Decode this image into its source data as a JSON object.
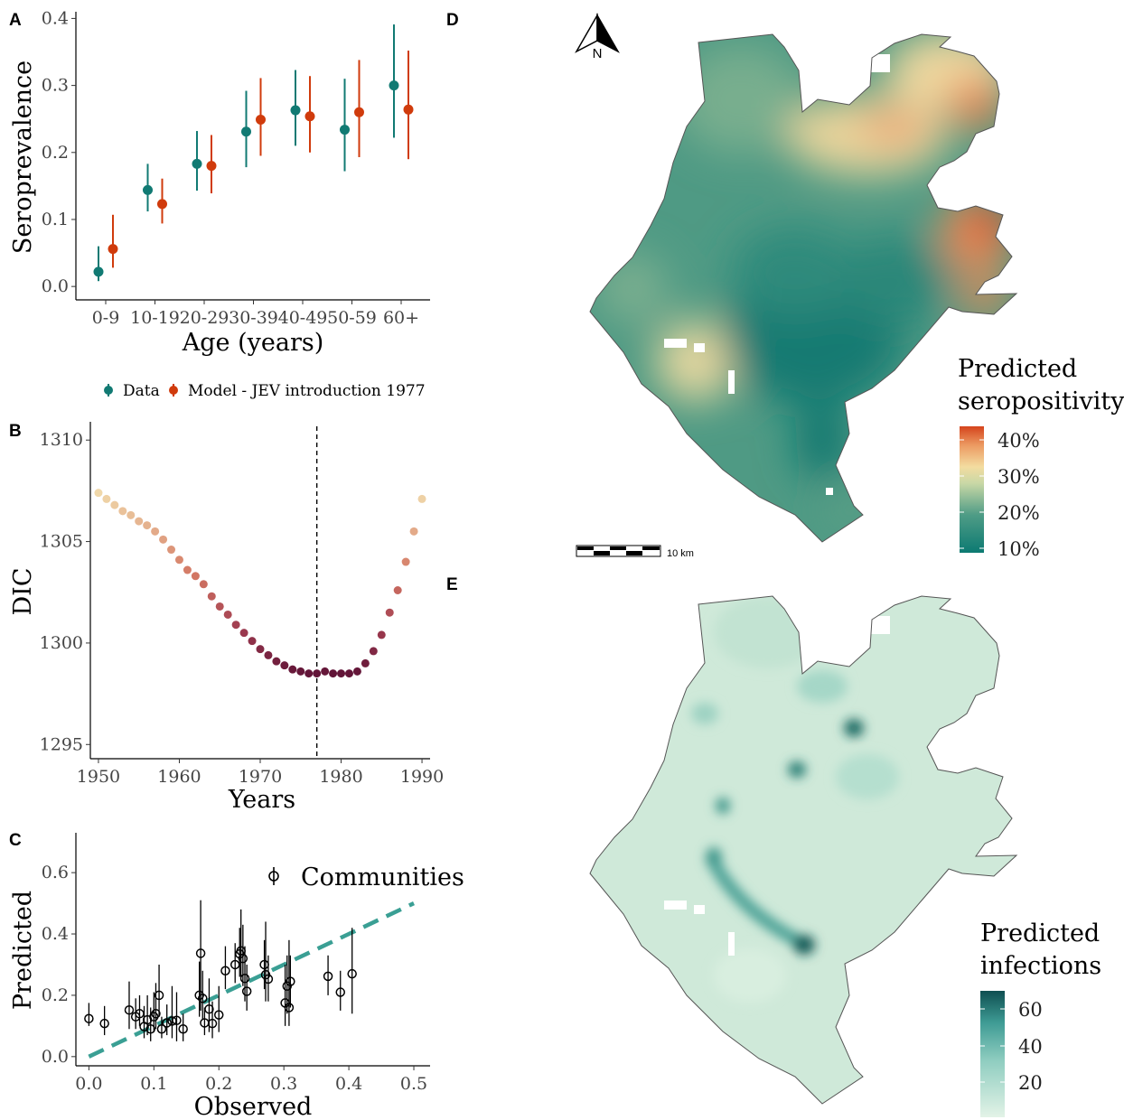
{
  "panels": {
    "A": "A",
    "B": "B",
    "C": "C",
    "D": "D",
    "E": "E"
  },
  "chart_data": [
    {
      "type": "scatter",
      "panel": "A",
      "categories": [
        "0-9",
        "10-19",
        "20-29",
        "30-39",
        "40-49",
        "50-59",
        "60+"
      ],
      "series": [
        {
          "name": "Data",
          "color": "#117a73",
          "values": [
            0.022,
            0.144,
            0.183,
            0.231,
            0.263,
            0.234,
            0.3
          ],
          "lower": [
            0.008,
            0.112,
            0.143,
            0.178,
            0.21,
            0.172,
            0.222
          ],
          "upper": [
            0.06,
            0.183,
            0.232,
            0.292,
            0.323,
            0.31,
            0.391
          ]
        },
        {
          "name": "Model - JEV introduction 1977",
          "color": "#d03b0c",
          "values": [
            0.056,
            0.123,
            0.18,
            0.249,
            0.254,
            0.26,
            0.264
          ],
          "lower": [
            0.028,
            0.094,
            0.139,
            0.195,
            0.2,
            0.193,
            0.19
          ],
          "upper": [
            0.107,
            0.161,
            0.226,
            0.311,
            0.314,
            0.338,
            0.352
          ]
        }
      ],
      "xlabel": "Age (years)",
      "ylabel": "Seroprevalence",
      "ylim": [
        -0.02,
        0.41
      ],
      "yticks": [
        "0.0",
        "0.1",
        "0.2",
        "0.3",
        "0.4"
      ],
      "legend_position": "bottom"
    },
    {
      "type": "scatter",
      "panel": "B",
      "x": [
        1950,
        1951,
        1952,
        1953,
        1954,
        1955,
        1956,
        1957,
        1958,
        1959,
        1960,
        1961,
        1962,
        1963,
        1964,
        1965,
        1966,
        1967,
        1968,
        1969,
        1970,
        1971,
        1972,
        1973,
        1974,
        1975,
        1976,
        1977,
        1978,
        1979,
        1980,
        1981,
        1982,
        1983,
        1984,
        1985,
        1986,
        1987,
        1988,
        1989,
        1990
      ],
      "y": [
        1307.4,
        1307.1,
        1306.8,
        1306.5,
        1306.3,
        1306.0,
        1305.8,
        1305.5,
        1305.1,
        1304.6,
        1304.1,
        1303.6,
        1303.3,
        1302.9,
        1302.3,
        1301.8,
        1301.4,
        1300.9,
        1300.5,
        1300.1,
        1299.7,
        1299.4,
        1299.1,
        1298.9,
        1298.7,
        1298.6,
        1298.5,
        1298.5,
        1298.6,
        1298.5,
        1298.5,
        1298.5,
        1298.6,
        1299.0,
        1299.6,
        1300.4,
        1301.5,
        1302.6,
        1304.0,
        1305.5,
        1307.1
      ],
      "xlabel": "Years",
      "ylabel": "DIC",
      "xlim": [
        1949,
        1991
      ],
      "ylim": [
        1294.3,
        1310.9
      ],
      "xticks": [
        1950,
        1960,
        1970,
        1980,
        1990
      ],
      "yticks": [
        1295,
        1300,
        1305,
        1310
      ],
      "vline": 1977
    },
    {
      "type": "scatter",
      "panel": "C",
      "series": [
        {
          "name": "Communities",
          "points": [
            [
              0.0,
              0.124,
              0.1,
              0.175
            ],
            [
              0.024,
              0.108,
              0.07,
              0.165
            ],
            [
              0.062,
              0.152,
              0.09,
              0.245
            ],
            [
              0.072,
              0.13,
              0.09,
              0.19
            ],
            [
              0.078,
              0.14,
              0.1,
              0.2
            ],
            [
              0.085,
              0.098,
              0.06,
              0.165
            ],
            [
              0.09,
              0.12,
              0.07,
              0.2
            ],
            [
              0.095,
              0.09,
              0.05,
              0.16
            ],
            [
              0.1,
              0.13,
              0.08,
              0.21
            ],
            [
              0.103,
              0.14,
              0.09,
              0.24
            ],
            [
              0.108,
              0.2,
              0.13,
              0.3
            ],
            [
              0.112,
              0.09,
              0.06,
              0.13
            ],
            [
              0.12,
              0.11,
              0.07,
              0.17
            ],
            [
              0.128,
              0.116,
              0.06,
              0.23
            ],
            [
              0.135,
              0.118,
              0.05,
              0.21
            ],
            [
              0.145,
              0.09,
              0.05,
              0.14
            ],
            [
              0.17,
              0.2,
              0.13,
              0.31
            ],
            [
              0.172,
              0.337,
              0.15,
              0.51
            ],
            [
              0.175,
              0.19,
              0.12,
              0.28
            ],
            [
              0.178,
              0.11,
              0.07,
              0.16
            ],
            [
              0.185,
              0.155,
              0.08,
              0.255
            ],
            [
              0.19,
              0.108,
              0.06,
              0.18
            ],
            [
              0.2,
              0.136,
              0.08,
              0.23
            ],
            [
              0.21,
              0.28,
              0.22,
              0.36
            ],
            [
              0.225,
              0.3,
              0.24,
              0.37
            ],
            [
              0.232,
              0.335,
              0.26,
              0.42
            ],
            [
              0.234,
              0.345,
              0.26,
              0.48
            ],
            [
              0.237,
              0.32,
              0.23,
              0.43
            ],
            [
              0.24,
              0.255,
              0.18,
              0.36
            ],
            [
              0.243,
              0.213,
              0.15,
              0.3
            ],
            [
              0.27,
              0.3,
              0.22,
              0.38
            ],
            [
              0.272,
              0.267,
              0.18,
              0.44
            ],
            [
              0.276,
              0.253,
              0.18,
              0.33
            ],
            [
              0.302,
              0.175,
              0.1,
              0.3
            ],
            [
              0.305,
              0.23,
              0.14,
              0.33
            ],
            [
              0.308,
              0.16,
              0.1,
              0.38
            ],
            [
              0.31,
              0.245,
              0.16,
              0.33
            ],
            [
              0.368,
              0.262,
              0.2,
              0.33
            ],
            [
              0.387,
              0.21,
              0.15,
              0.28
            ],
            [
              0.405,
              0.27,
              0.14,
              0.42
            ]
          ]
        }
      ],
      "xlabel": "Observed",
      "ylabel": "Predicted",
      "xlim": [
        -0.02,
        0.525
      ],
      "ylim": [
        -0.03,
        0.73
      ],
      "xticks": [
        "0.0",
        "0.1",
        "0.2",
        "0.3",
        "0.4",
        "0.5"
      ],
      "yticks": [
        "0.0",
        "0.2",
        "0.4",
        "0.6"
      ],
      "reference_line": {
        "slope": 1,
        "intercept": 0,
        "color": "#3a9f94",
        "style": "dashed"
      },
      "legend_position": "top-right"
    },
    {
      "type": "heatmap",
      "panel": "D",
      "legend_title": [
        "Predicted",
        "seropositivity"
      ],
      "colorbar_ticks": [
        "40%",
        "30%",
        "20%",
        "10%"
      ],
      "colors": [
        "#0c7a72",
        "#f3dca0",
        "#d5441c"
      ],
      "scalebar_label": "10 km",
      "north_label": "N"
    },
    {
      "type": "heatmap",
      "panel": "E",
      "legend_title": [
        "Predicted",
        "infections"
      ],
      "colorbar_ticks": [
        "60",
        "40",
        "20"
      ],
      "colors": [
        "#dff0e3",
        "#0f5e5c"
      ]
    }
  ]
}
